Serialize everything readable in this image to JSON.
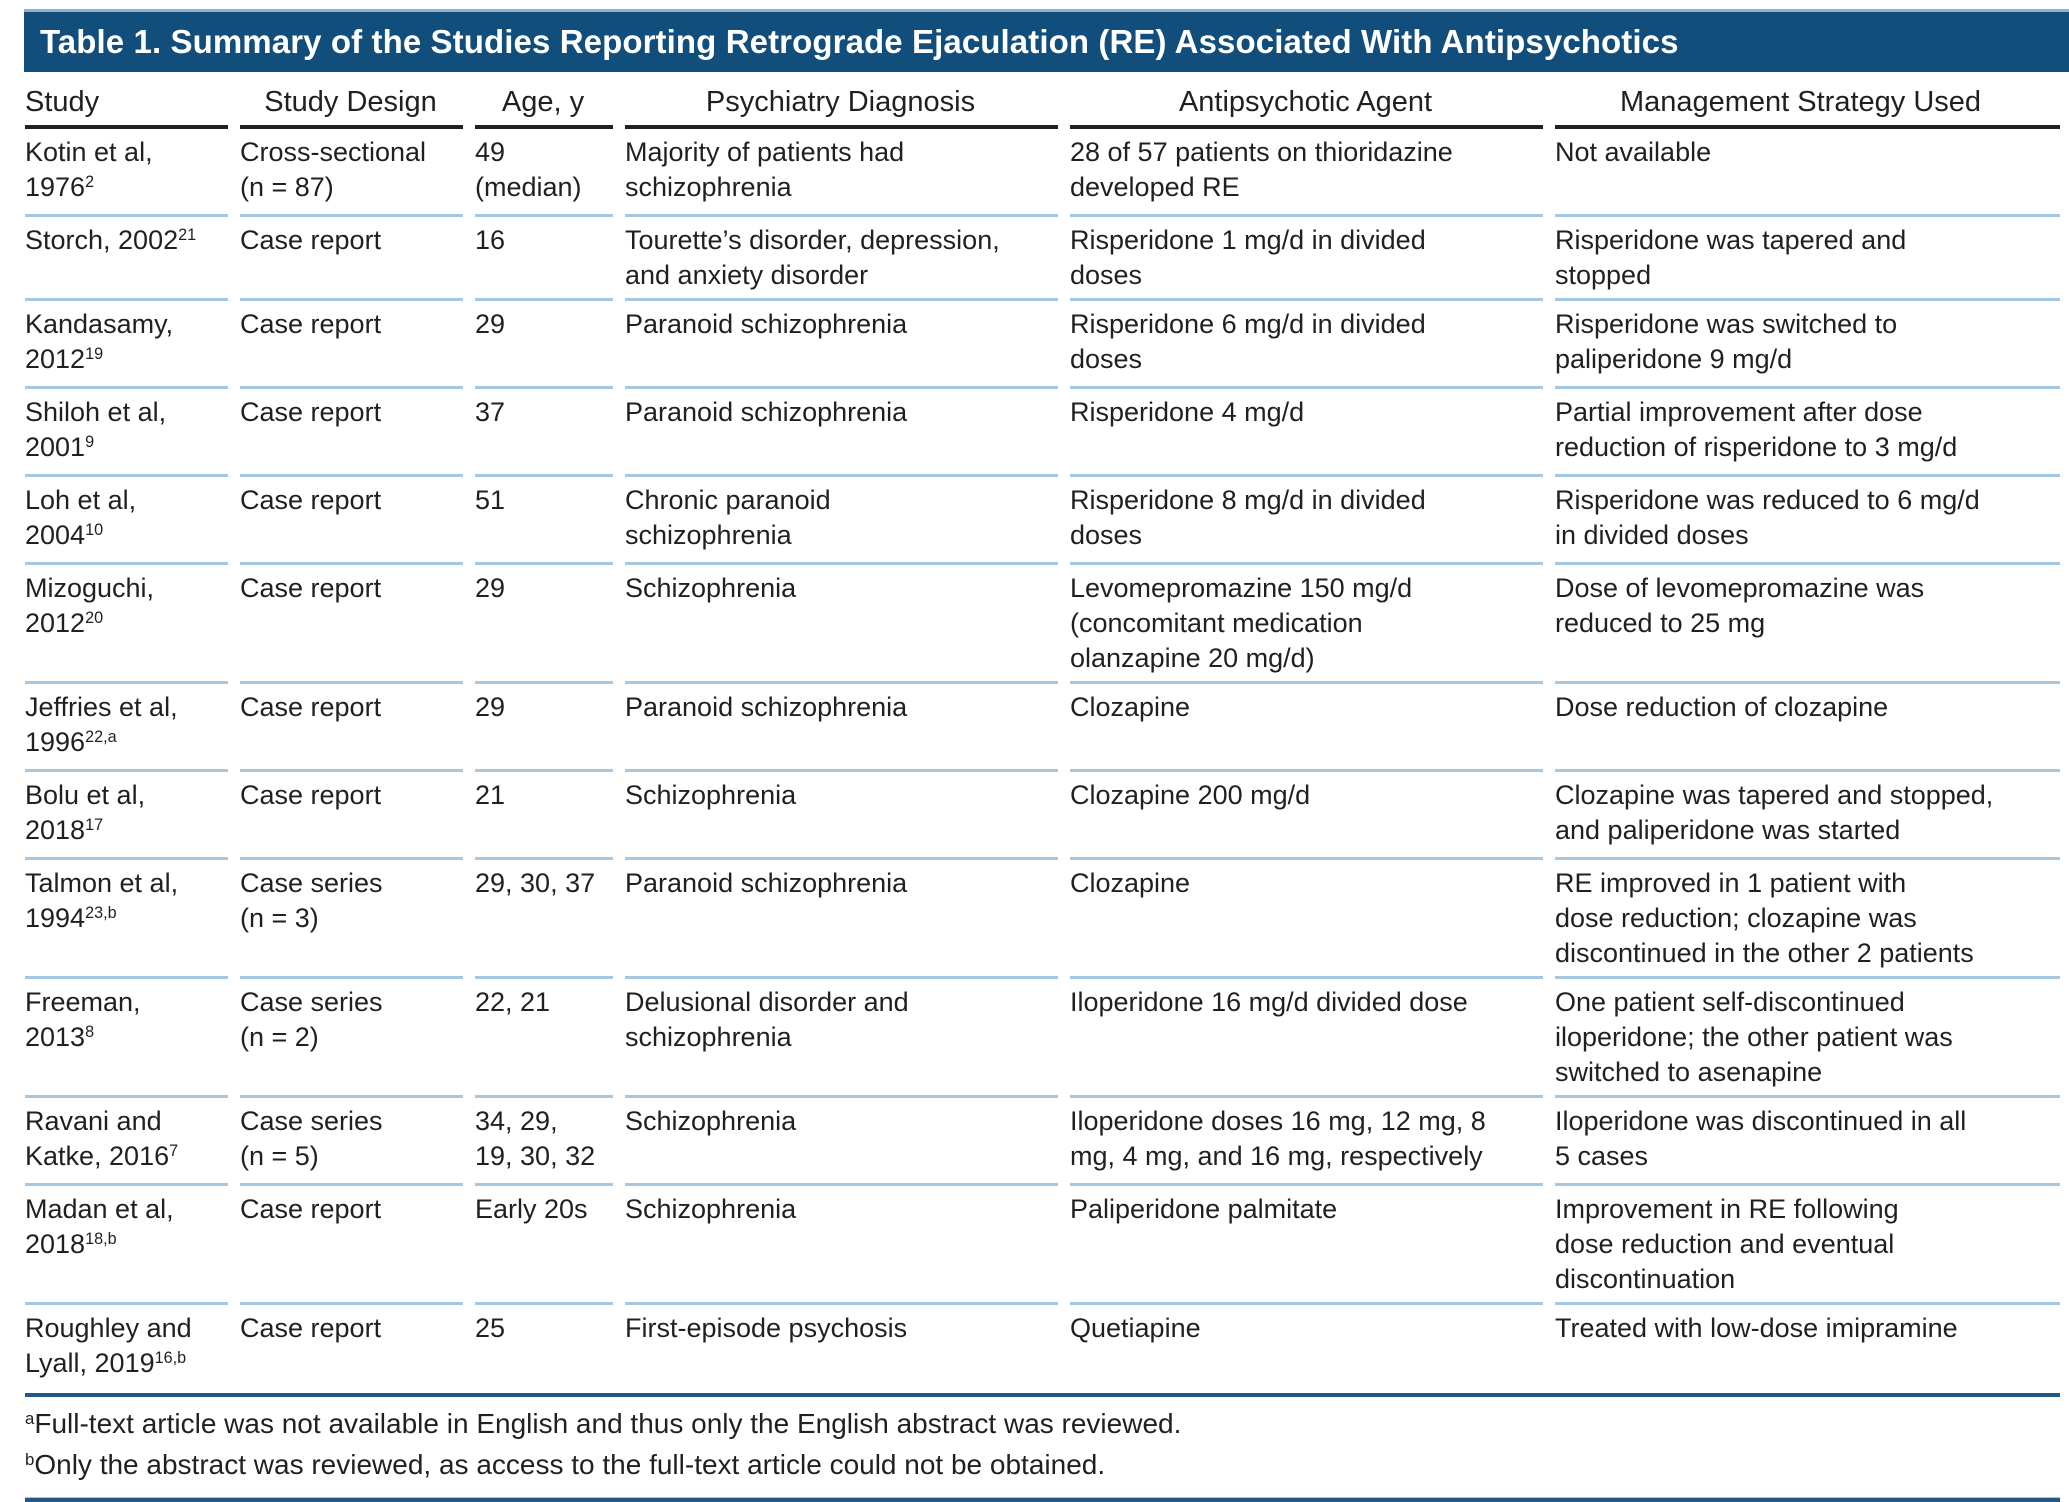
{
  "title": "Table 1. Summary of the Studies Reporting Retrograde Ejaculation (RE) Associated With Antipsychotics",
  "columns": [
    "Study",
    "Study Design",
    "Age, y",
    "Psychiatry Diagnosis",
    "Antipsychotic Agent",
    "Management Strategy Used"
  ],
  "rows": [
    {
      "study": "Kotin et al,\n1976",
      "study_sup": "2",
      "design": "Cross-sectional\n(n = 87)",
      "age": "49\n(median)",
      "diagnosis": "Majority of patients had\nschizophrenia",
      "agent": "28 of 57 patients on thioridazine\ndeveloped RE",
      "management": "Not available"
    },
    {
      "study": "Storch, 2002",
      "study_sup": "21",
      "design": "Case report",
      "age": "16",
      "diagnosis": "Tourette’s disorder, depression,\nand anxiety disorder",
      "agent": "Risperidone 1 mg/d in divided\ndoses",
      "management": "Risperidone was tapered and\nstopped"
    },
    {
      "study": "Kandasamy,\n2012",
      "study_sup": "19",
      "design": "Case report",
      "age": "29",
      "diagnosis": "Paranoid schizophrenia",
      "agent": "Risperidone 6 mg/d in divided\ndoses",
      "management": "Risperidone was switched to\npaliperidone 9 mg/d"
    },
    {
      "study": "Shiloh et al,\n2001",
      "study_sup": "9",
      "design": "Case report",
      "age": "37",
      "diagnosis": "Paranoid schizophrenia",
      "agent": "Risperidone 4 mg/d",
      "management": "Partial improvement after dose\nreduction of risperidone to 3 mg/d"
    },
    {
      "study": "Loh et al,\n2004",
      "study_sup": "10",
      "design": "Case report",
      "age": "51",
      "diagnosis": "Chronic paranoid\nschizophrenia",
      "agent": "Risperidone 8 mg/d in divided\ndoses",
      "management": "Risperidone was reduced to 6 mg/d\nin divided doses"
    },
    {
      "study": "Mizoguchi,\n2012",
      "study_sup": "20",
      "design": "Case report",
      "age": "29",
      "diagnosis": "Schizophrenia",
      "agent": "Levomepromazine 150 mg/d\n(concomitant medication\nolanzapine 20 mg/d)",
      "management": "Dose of levomepromazine was\nreduced to 25 mg"
    },
    {
      "study": "Jeffries et al,\n1996",
      "study_sup": "22,a",
      "design": "Case report",
      "age": "29",
      "diagnosis": "Paranoid schizophrenia",
      "agent": "Clozapine",
      "management": "Dose reduction of clozapine"
    },
    {
      "study": "Bolu et al,\n2018",
      "study_sup": "17",
      "design": "Case report",
      "age": "21",
      "diagnosis": "Schizophrenia",
      "agent": "Clozapine 200 mg/d",
      "management": "Clozapine was tapered and stopped,\nand paliperidone was started"
    },
    {
      "study": "Talmon et al,\n1994",
      "study_sup": "23,b",
      "design": "Case series\n(n = 3)",
      "age": "29, 30, 37",
      "diagnosis": "Paranoid schizophrenia",
      "agent": "Clozapine",
      "management": "RE improved in 1 patient with\ndose reduction; clozapine was\ndiscontinued in the other 2 patients"
    },
    {
      "study": "Freeman,\n2013",
      "study_sup": "8",
      "design": "Case series\n(n = 2)",
      "age": "22, 21",
      "diagnosis": "Delusional disorder and\nschizophrenia",
      "agent": "Iloperidone 16 mg/d divided dose",
      "management": "One patient self-discontinued\niloperidone; the other patient was\nswitched to asenapine"
    },
    {
      "study": "Ravani and\nKatke, 2016",
      "study_sup": "7",
      "design": "Case series\n(n = 5)",
      "age": "34, 29,\n19, 30, 32",
      "diagnosis": "Schizophrenia",
      "agent": "Iloperidone doses 16 mg, 12 mg, 8\nmg, 4 mg, and 16 mg, respectively",
      "management": "Iloperidone was discontinued in all\n5 cases"
    },
    {
      "study": "Madan et al,\n2018",
      "study_sup": "18,b",
      "design": "Case report",
      "age": "Early 20s",
      "diagnosis": "Schizophrenia",
      "agent": "Paliperidone palmitate",
      "management": "Improvement in RE following\ndose reduction and eventual\ndiscontinuation"
    },
    {
      "study": "Roughley and\nLyall, 2019",
      "study_sup": "16,b",
      "design": "Case report",
      "age": "25",
      "diagnosis": "First-episode psychosis",
      "agent": "Quetiapine",
      "management": "Treated with low-dose imipramine"
    }
  ],
  "footnotes": [
    {
      "marker": "a",
      "text": "Full-text article was not available in English and thus only the English abstract was reviewed."
    },
    {
      "marker": "b",
      "text": "Only the abstract was reviewed, as access to the full-text article could not be obtained."
    }
  ],
  "colors": {
    "title_bar": "#114E7B",
    "title_bar_edge": "#8FB3CE",
    "row_separator": "#A6C7E2",
    "rule_blue": "#20598A",
    "header_rule": "#231F20",
    "text": "#231F20"
  }
}
